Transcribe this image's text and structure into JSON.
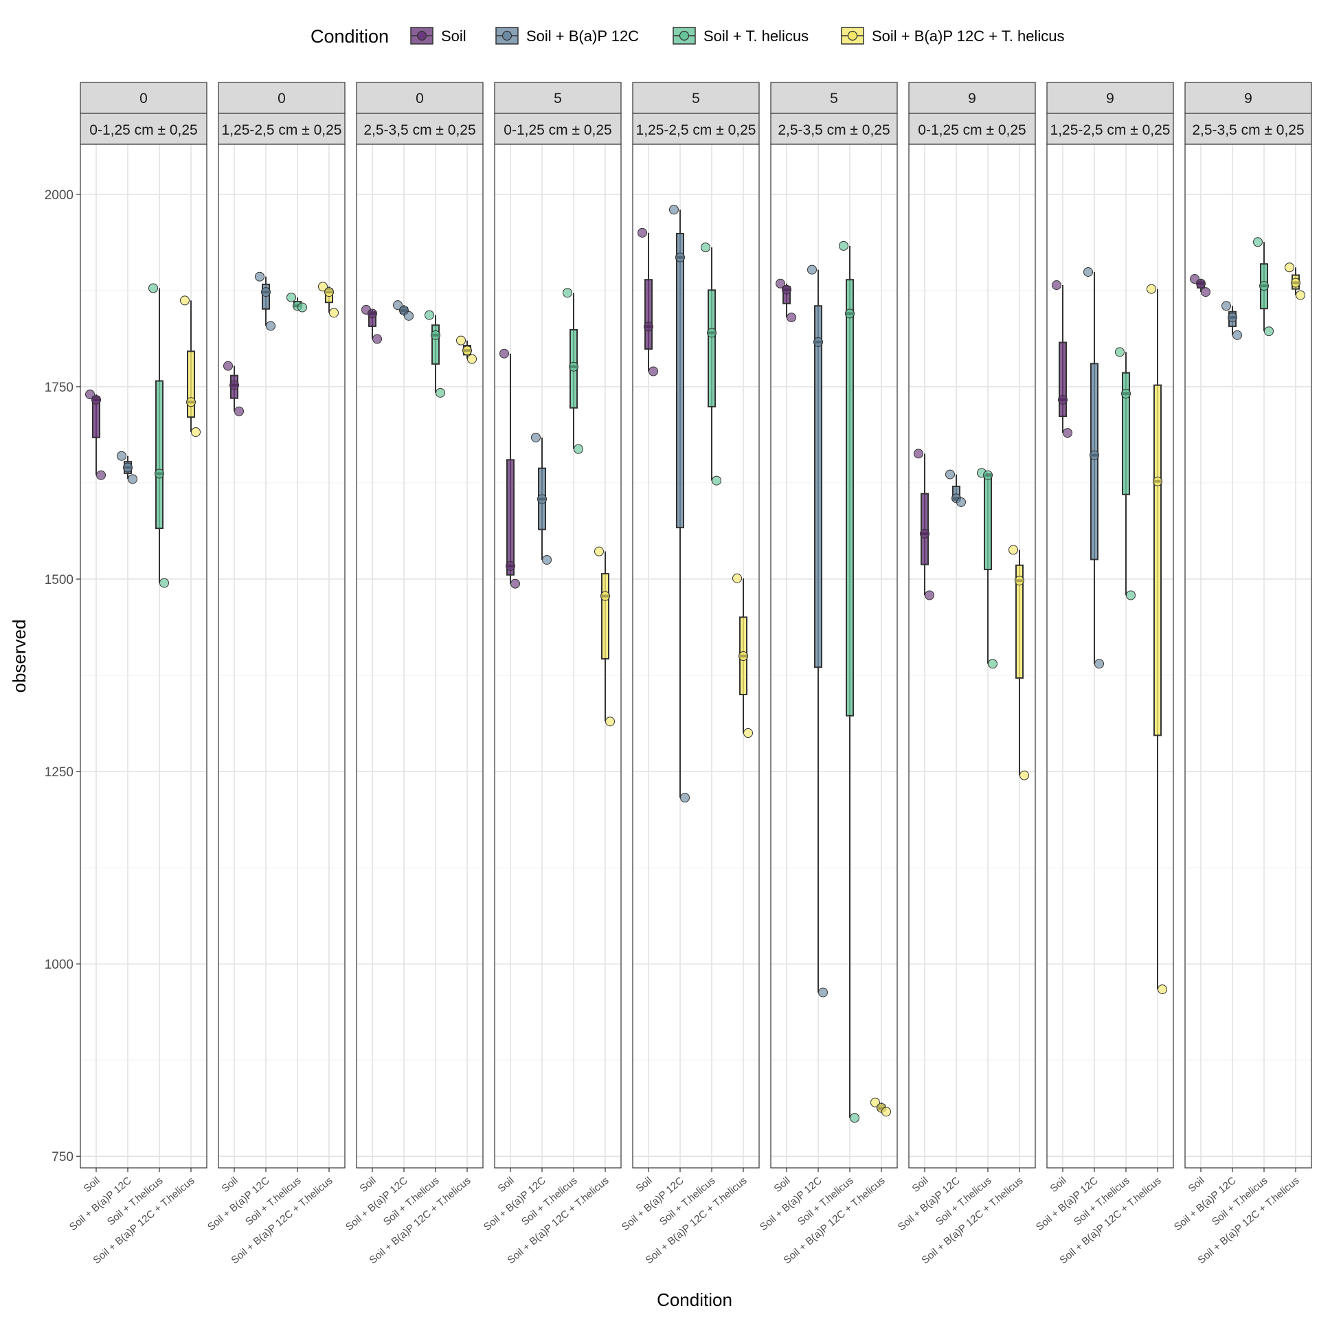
{
  "chart_data": {
    "type": "box",
    "title": "",
    "xlabel": "Condition",
    "ylabel": "observed",
    "ylim": [
      735,
      2065
    ],
    "y_ticks": [
      750,
      1000,
      1250,
      1500,
      1750,
      2000
    ],
    "grid": true,
    "legend": {
      "title": "Condition",
      "position": "top",
      "entries": [
        "Soil",
        "Soil + B(a)P 12C",
        "Soil + T. helicus",
        "Soil + B(a)P 12C + T. helicus"
      ]
    },
    "categories": [
      "Soil",
      "Soil + B(a)P 12C",
      "Soil + T.helicus",
      "Soil + B(a)P 12C + T.helicus"
    ],
    "colors": [
      "#6b3a7d",
      "#6c8aa3",
      "#66c49a",
      "#f5e86a"
    ],
    "panels": [
      {
        "time": "0",
        "depth": "0-1,25 cm ± 0,25",
        "series": [
          {
            "name": "Soil",
            "points": [
              1740,
              1733,
              1635
            ]
          },
          {
            "name": "Soil + B(a)P 12C",
            "points": [
              1660,
              1645,
              1630
            ]
          },
          {
            "name": "Soil + T. helicus",
            "points": [
              1878,
              1637,
              1495
            ]
          },
          {
            "name": "Soil + B(a)P 12C + T. helicus",
            "points": [
              1862,
              1730,
              1691
            ]
          }
        ]
      },
      {
        "time": "0",
        "depth": "1,25-2,5 cm ± 0,25",
        "series": [
          {
            "name": "Soil",
            "points": [
              1777,
              1752,
              1718
            ]
          },
          {
            "name": "Soil + B(a)P 12C",
            "points": [
              1893,
              1873,
              1829
            ]
          },
          {
            "name": "Soil + T. helicus",
            "points": [
              1866,
              1855,
              1853
            ]
          },
          {
            "name": "Soil + B(a)P 12C + T. helicus",
            "points": [
              1880,
              1873,
              1846
            ]
          }
        ]
      },
      {
        "time": "0",
        "depth": "2,5-3,5 cm ± 0,25",
        "series": [
          {
            "name": "Soil",
            "points": [
              1850,
              1845,
              1812
            ]
          },
          {
            "name": "Soil + B(a)P 12C",
            "points": [
              1856,
              1849,
              1842
            ]
          },
          {
            "name": "Soil + T. helicus",
            "points": [
              1843,
              1817,
              1742
            ]
          },
          {
            "name": "Soil + B(a)P 12C + T. helicus",
            "points": [
              1810,
              1797,
              1786
            ]
          }
        ]
      },
      {
        "time": "5",
        "depth": "0-1,25 cm ± 0,25",
        "series": [
          {
            "name": "Soil",
            "points": [
              1793,
              1517,
              1494
            ]
          },
          {
            "name": "Soil + B(a)P 12C",
            "points": [
              1684,
              1604,
              1525
            ]
          },
          {
            "name": "Soil + T. helicus",
            "points": [
              1872,
              1776,
              1669
            ]
          },
          {
            "name": "Soil + B(a)P 12C + T. helicus",
            "points": [
              1536,
              1478,
              1315
            ]
          }
        ]
      },
      {
        "time": "5",
        "depth": "1,25-2,5 cm ± 0,25",
        "series": [
          {
            "name": "Soil",
            "points": [
              1950,
              1828,
              1770
            ]
          },
          {
            "name": "Soil + B(a)P 12C",
            "points": [
              1980,
              1918,
              1216
            ]
          },
          {
            "name": "Soil + T. helicus",
            "points": [
              1931,
              1820,
              1628
            ]
          },
          {
            "name": "Soil + B(a)P 12C + T. helicus",
            "points": [
              1501,
              1400,
              1300
            ]
          }
        ]
      },
      {
        "time": "5",
        "depth": "2,5-3,5 cm ± 0,25",
        "series": [
          {
            "name": "Soil",
            "points": [
              1884,
              1876,
              1840
            ]
          },
          {
            "name": "Soil + B(a)P 12C",
            "points": [
              1902,
              1808,
              963
            ]
          },
          {
            "name": "Soil + T. helicus",
            "points": [
              1933,
              1845,
              800
            ]
          },
          {
            "name": "Soil + B(a)P 12C + T. helicus",
            "points": [
              820,
              813,
              808
            ]
          }
        ]
      },
      {
        "time": "9",
        "depth": "0-1,25 cm ± 0,25",
        "series": [
          {
            "name": "Soil",
            "points": [
              1663,
              1559,
              1479
            ]
          },
          {
            "name": "Soil + B(a)P 12C",
            "points": [
              1636,
              1605,
              1600
            ]
          },
          {
            "name": "Soil + T. helicus",
            "points": [
              1638,
              1635,
              1390
            ]
          },
          {
            "name": "Soil + B(a)P 12C + T. helicus",
            "points": [
              1538,
              1498,
              1245
            ]
          }
        ]
      },
      {
        "time": "9",
        "depth": "1,25-2,5 cm ± 0,25",
        "series": [
          {
            "name": "Soil",
            "points": [
              1882,
              1733,
              1690
            ]
          },
          {
            "name": "Soil + B(a)P 12C",
            "points": [
              1899,
              1661,
              1390
            ]
          },
          {
            "name": "Soil + T. helicus",
            "points": [
              1795,
              1741,
              1479
            ]
          },
          {
            "name": "Soil + B(a)P 12C + T. helicus",
            "points": [
              1877,
              1627,
              967
            ]
          }
        ]
      },
      {
        "time": "9",
        "depth": "2,5-3,5 cm ± 0,25",
        "series": [
          {
            "name": "Soil",
            "points": [
              1890,
              1884,
              1873
            ]
          },
          {
            "name": "Soil + B(a)P 12C",
            "points": [
              1855,
              1840,
              1817
            ]
          },
          {
            "name": "Soil + T. helicus",
            "points": [
              1938,
              1881,
              1822
            ]
          },
          {
            "name": "Soil + B(a)P 12C + T. helicus",
            "points": [
              1905,
              1885,
              1869
            ]
          }
        ]
      }
    ]
  }
}
